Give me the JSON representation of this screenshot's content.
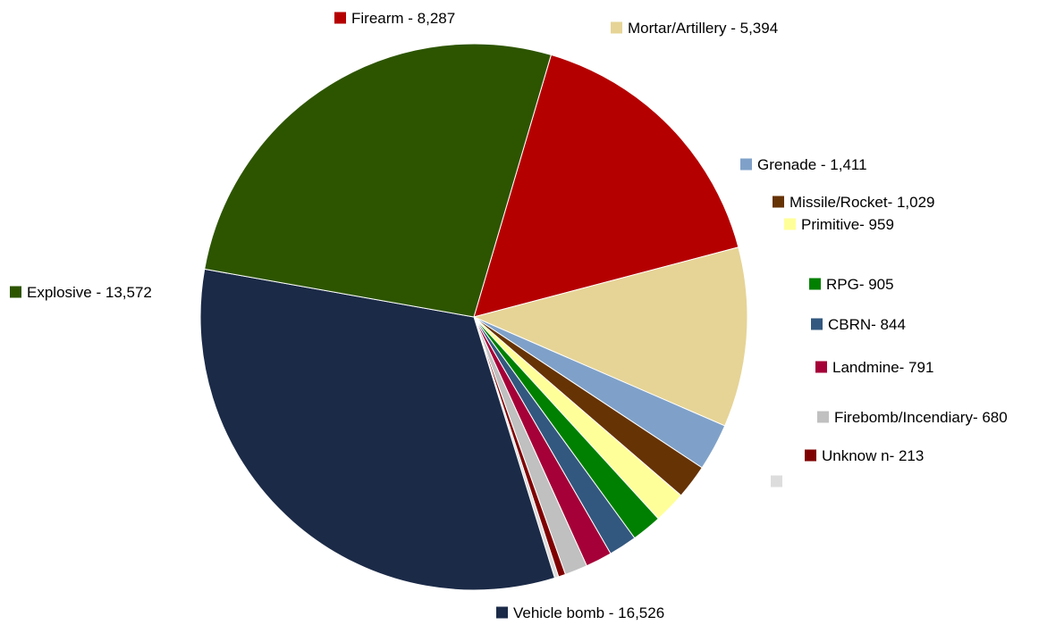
{
  "chart_data": {
    "type": "pie",
    "title": "",
    "slices": [
      {
        "name": "Firearm",
        "label": "Firearm - 8,287",
        "value": 8287,
        "color": "#b50000",
        "legend_key": "legend-swatch-firearm",
        "legend_text": "legend-label-firearm",
        "slice_key": "pie-slice-firearm"
      },
      {
        "name": "Mortar/Artillery",
        "label": "Mortar/Artillery - 5,394",
        "value": 5394,
        "color": "#e6d496",
        "legend_key": "legend-swatch-mortar-artillery",
        "legend_text": "legend-label-mortar-artillery",
        "slice_key": "pie-slice-mortar-artillery"
      },
      {
        "name": "Grenade",
        "label": "Grenade - 1,411",
        "value": 1411,
        "color": "#7fa1c9",
        "legend_key": "legend-swatch-grenade",
        "legend_text": "legend-label-grenade",
        "slice_key": "pie-slice-grenade"
      },
      {
        "name": "Missile/Rocket",
        "label": "Missile/Rocket- 1,029",
        "value": 1029,
        "color": "#663305",
        "legend_key": "legend-swatch-missile-rocket",
        "legend_text": "legend-label-missile-rocket",
        "slice_key": "pie-slice-missile-rocket"
      },
      {
        "name": "Primitive",
        "label": "Primitive- 959",
        "value": 959,
        "color": "#ffff99",
        "legend_key": "legend-swatch-primitive",
        "legend_text": "legend-label-primitive",
        "slice_key": "pie-slice-primitive"
      },
      {
        "name": "RPG",
        "label": "RPG- 905",
        "value": 905,
        "color": "#008000",
        "legend_key": "legend-swatch-rpg",
        "legend_text": "legend-label-rpg",
        "slice_key": "pie-slice-rpg"
      },
      {
        "name": "CBRN",
        "label": "CBRN- 844",
        "value": 844,
        "color": "#33587f",
        "legend_key": "legend-swatch-cbrn",
        "legend_text": "legend-label-cbrn",
        "slice_key": "pie-slice-cbrn"
      },
      {
        "name": "Landmine",
        "label": "Landmine- 791",
        "value": 791,
        "color": "#a50038",
        "legend_key": "legend-swatch-landmine",
        "legend_text": "legend-label-landmine",
        "slice_key": "pie-slice-landmine"
      },
      {
        "name": "Firebomb/Incendiary",
        "label": "Firebomb/Incendiary- 680",
        "value": 680,
        "color": "#c0c0c0",
        "legend_key": "legend-swatch-firebomb-incendiary",
        "legend_text": "legend-label-firebomb-incendiary",
        "slice_key": "pie-slice-firebomb-incendiary"
      },
      {
        "name": "Unknown",
        "label": "Unknow n- 213",
        "value": 213,
        "color": "#7f0000",
        "legend_key": "legend-swatch-unknown",
        "legend_text": "legend-label-unknown",
        "slice_key": "pie-slice-unknown"
      },
      {
        "name": "",
        "label": "",
        "value": 120,
        "color": "#dddddd",
        "legend_key": "legend-swatch-unlabeled",
        "legend_text": "legend-label-unlabeled",
        "slice_key": "pie-slice-unlabeled"
      },
      {
        "name": "Vehicle bomb",
        "label": "Vehicle bomb - 16,526",
        "value": 16526,
        "color": "#1b2a47",
        "legend_key": "legend-swatch-vehicle-bomb",
        "legend_text": "legend-label-vehicle-bomb",
        "slice_key": "pie-slice-vehicle-bomb"
      },
      {
        "name": "Explosive",
        "label": "Explosive - 13,572",
        "value": 13572,
        "color": "#2d5500",
        "legend_key": "legend-swatch-explosive",
        "legend_text": "legend-label-explosive",
        "slice_key": "pie-slice-explosive"
      }
    ],
    "legend": "labels beside slices"
  }
}
